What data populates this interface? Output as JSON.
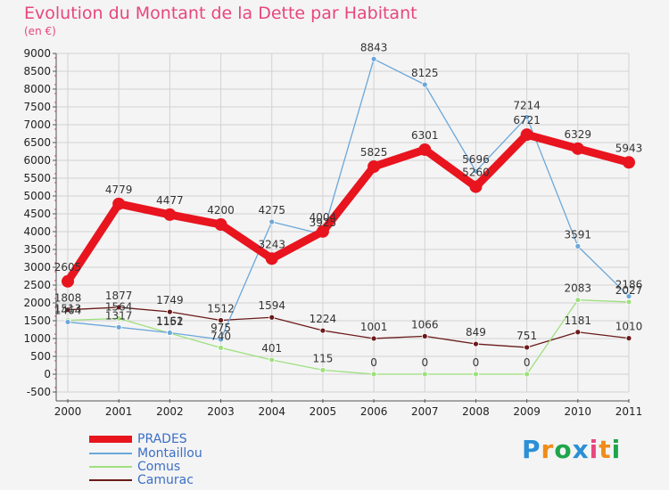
{
  "title": "Evolution du Montant de la Dette par Habitant",
  "unit_label": "(en €)",
  "logo": {
    "text": "Proxiti",
    "letters": [
      "P",
      "r",
      "o",
      "x",
      "i",
      "t",
      "i"
    ],
    "colors": [
      "#2a8fd6",
      "#f08c1a",
      "#1fa54a",
      "#2a8fd6",
      "#e8467d",
      "#f08c1a",
      "#1fa54a"
    ]
  },
  "colors": {
    "background": "#f4f4f4",
    "grid": "#d2d2d2",
    "axis": "#555555",
    "title": "#e8467d",
    "legend_text": "#3b6fc6"
  },
  "chart_data": {
    "type": "line",
    "x": [
      "2000",
      "2001",
      "2002",
      "2003",
      "2004",
      "2005",
      "2006",
      "2007",
      "2008",
      "2009",
      "2010",
      "2011"
    ],
    "ylim": [
      -500,
      9000
    ],
    "yticks": [
      -500,
      0,
      500,
      1000,
      1500,
      2000,
      2500,
      3000,
      3500,
      4000,
      4500,
      5000,
      5500,
      6000,
      6500,
      7000,
      7500,
      8000,
      8500,
      9000
    ],
    "grid": true,
    "legend_position": "bottom-left",
    "series": [
      {
        "name": "PRADES",
        "color": "#e8141e",
        "width": 9,
        "marker": 7,
        "values": [
          2605,
          4779,
          4477,
          4200,
          3243,
          4004,
          5825,
          6301,
          5260,
          6721,
          6329,
          5943
        ],
        "labels": [
          "2605",
          "4779",
          "4477",
          "4200",
          "3243",
          "4004",
          "5825",
          "6301",
          "5260",
          "6721",
          "6329",
          "5943"
        ]
      },
      {
        "name": "Montaillou",
        "color": "#6ba7d9",
        "width": 1.3,
        "marker": 3,
        "values": [
          1464,
          1317,
          1162,
          975,
          4275,
          3925,
          8843,
          8125,
          5696,
          7214,
          3591,
          2186
        ],
        "labels": [
          "1464",
          "1317",
          "1162",
          "975",
          "4275",
          "3925",
          "8843",
          "8125",
          "5696",
          "7214",
          "3591",
          "2186"
        ]
      },
      {
        "name": "Comus",
        "color": "#9ee07e",
        "width": 1.3,
        "marker": 3,
        "values": [
          1513,
          1564,
          1151,
          740,
          401,
          115,
          0,
          0,
          0,
          0,
          2083,
          2027
        ],
        "labels": [
          "1513",
          "1564",
          "1151",
          "740",
          "401",
          "115",
          "0",
          "0",
          "0",
          "0",
          "2083",
          "2027"
        ]
      },
      {
        "name": "Camurac",
        "color": "#6b1a1a",
        "width": 1.3,
        "marker": 3,
        "values": [
          1808,
          1877,
          1749,
          1512,
          1594,
          1224,
          1001,
          1066,
          849,
          751,
          1181,
          1010
        ],
        "labels": [
          "1808",
          "1877",
          "1749",
          "1512",
          "1594",
          "1224",
          "1001",
          "1066",
          "849",
          "751",
          "1181",
          "1010"
        ]
      }
    ]
  }
}
